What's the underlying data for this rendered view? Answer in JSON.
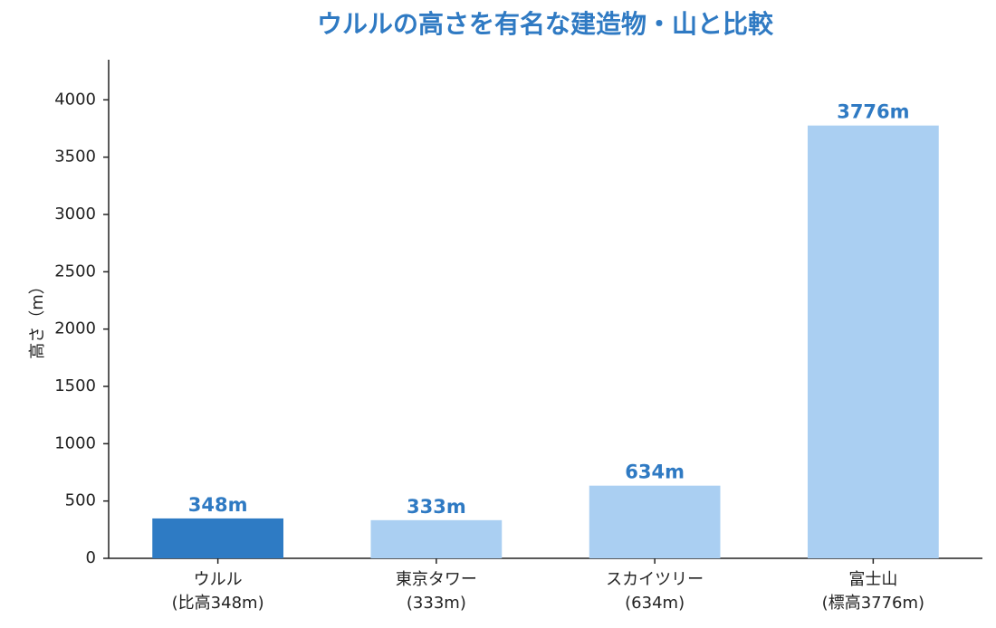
{
  "chart_data": {
    "type": "bar",
    "title": "ウルルの高さを有名な建造物・山と比較",
    "y_label": "高さ（m）",
    "categories": [
      "ウルル\n(比高348m)",
      "東京タワー\n(333m)",
      "スカイツリー\n(634m)",
      "富士山\n(標高3776m)"
    ],
    "values": [
      348,
      333,
      634,
      3776
    ],
    "value_labels": [
      "348m",
      "333m",
      "634m",
      "3776m"
    ],
    "colors": [
      "#2e7bc4",
      "#aacff2",
      "#aacff2",
      "#aacff2"
    ],
    "ylim": [
      0,
      4350
    ],
    "yticks": [
      0,
      500,
      1000,
      1500,
      2000,
      2500,
      3000,
      3500,
      4000
    ],
    "grid": false
  }
}
